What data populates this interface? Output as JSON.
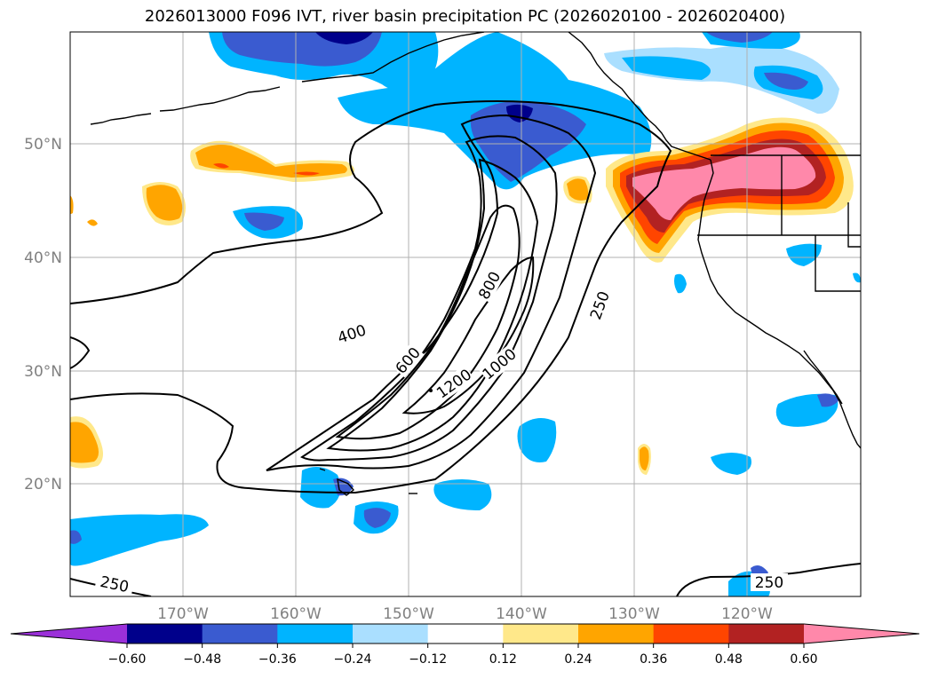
{
  "title": "2026013000 F096 IVT, river basin precipitation PC (2026020100 - 2026020400)",
  "lat_labels": [
    "50°N",
    "40°N",
    "30°N",
    "20°N"
  ],
  "lon_labels": [
    "170°W",
    "160°W",
    "150°W",
    "140°W",
    "130°W",
    "120°W"
  ],
  "contour_labels": [
    "800",
    "400",
    "600",
    "1200",
    "1000",
    "250",
    "250",
    "250"
  ],
  "colorbar": {
    "ticks": [
      "−0.60",
      "−0.48",
      "−0.36",
      "−0.24",
      "−0.12",
      "0.12",
      "0.24",
      "0.36",
      "0.48",
      "0.60"
    ],
    "colors": [
      "#9b30d9",
      "#00008b",
      "#3a5bd0",
      "#00b4ff",
      "#aadfff",
      "#ffffff",
      "#ffe88a",
      "#ffa500",
      "#ff4500",
      "#b22222",
      "#ff88aa"
    ]
  }
}
